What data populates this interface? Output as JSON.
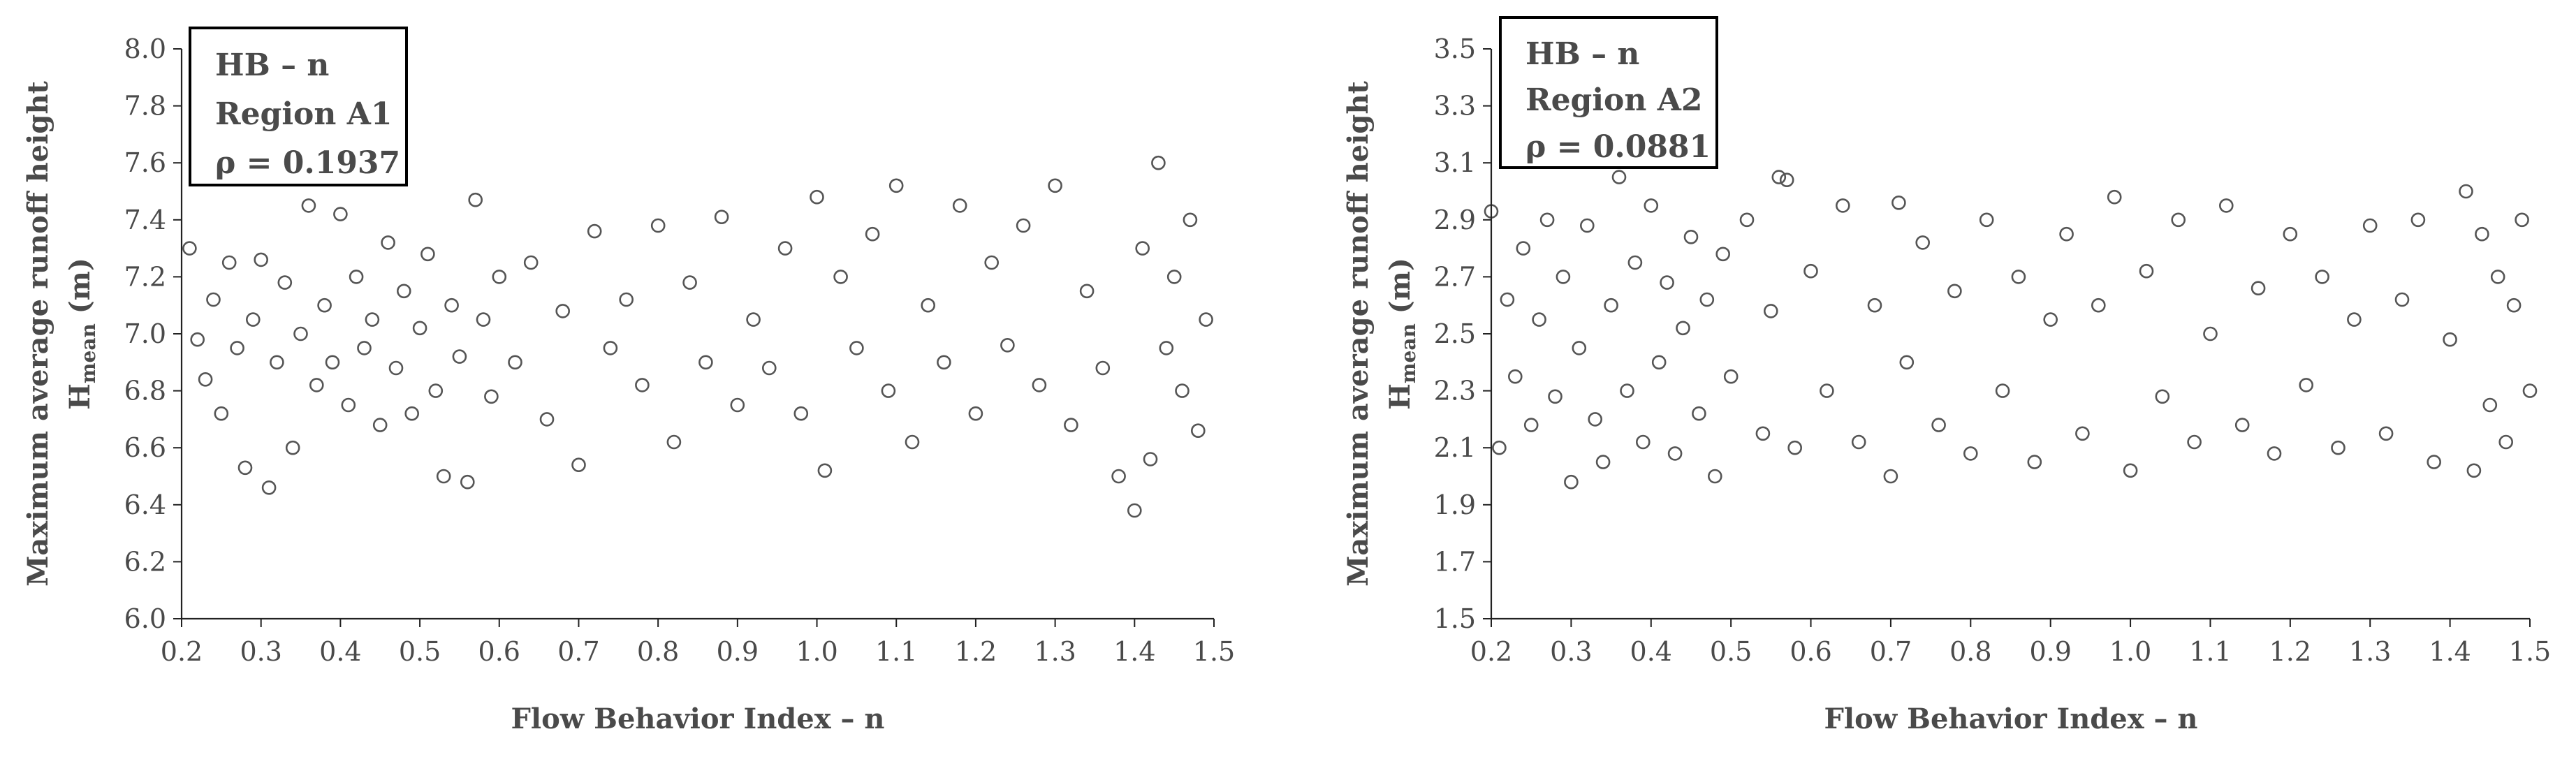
{
  "chart_data": [
    {
      "type": "scatter",
      "legend": [
        "HB – n",
        "Region A1",
        "ρ = 0.1937"
      ],
      "legend_position": "top-left",
      "xlabel": "Flow Behavior Index – n",
      "ylabel": "Maximum average runoff height",
      "ylabel2_main": "H",
      "ylabel2_sub": "mean",
      "ylabel2_unit": " (m)",
      "xlim": [
        0.2,
        1.5
      ],
      "ylim": [
        6.0,
        8.0
      ],
      "xticks": [
        0.2,
        0.3,
        0.4,
        0.5,
        0.6,
        0.7,
        0.8,
        0.9,
        1.0,
        1.1,
        1.2,
        1.3,
        1.4,
        1.5
      ],
      "yticks": [
        6.0,
        6.2,
        6.4,
        6.6,
        6.8,
        7.0,
        7.2,
        7.4,
        7.6,
        7.8,
        8.0
      ],
      "xtick_labels": [
        "0.2",
        "0.3",
        "0.4",
        "0.5",
        "0.6",
        "0.7",
        "0.8",
        "0.9",
        "1.0",
        "1.1",
        "1.2",
        "1.3",
        "1.4",
        "1.5"
      ],
      "ytick_labels": [
        "6.0",
        "6.2",
        "6.4",
        "6.6",
        "6.8",
        "7.0",
        "7.2",
        "7.4",
        "7.6",
        "7.8",
        "8.0"
      ],
      "grid": false,
      "points": [
        [
          0.21,
          7.3
        ],
        [
          0.22,
          6.98
        ],
        [
          0.23,
          6.84
        ],
        [
          0.24,
          7.12
        ],
        [
          0.25,
          6.72
        ],
        [
          0.26,
          7.25
        ],
        [
          0.27,
          6.95
        ],
        [
          0.28,
          6.53
        ],
        [
          0.29,
          7.05
        ],
        [
          0.3,
          7.26
        ],
        [
          0.31,
          6.46
        ],
        [
          0.32,
          6.9
        ],
        [
          0.33,
          7.18
        ],
        [
          0.34,
          6.6
        ],
        [
          0.35,
          7.0
        ],
        [
          0.36,
          7.45
        ],
        [
          0.37,
          6.82
        ],
        [
          0.38,
          7.1
        ],
        [
          0.39,
          6.9
        ],
        [
          0.4,
          7.42
        ],
        [
          0.41,
          6.75
        ],
        [
          0.42,
          7.2
        ],
        [
          0.43,
          6.95
        ],
        [
          0.44,
          7.05
        ],
        [
          0.45,
          6.68
        ],
        [
          0.46,
          7.32
        ],
        [
          0.47,
          6.88
        ],
        [
          0.48,
          7.15
        ],
        [
          0.49,
          6.72
        ],
        [
          0.5,
          7.02
        ],
        [
          0.51,
          7.28
        ],
        [
          0.52,
          6.8
        ],
        [
          0.53,
          6.5
        ],
        [
          0.54,
          7.1
        ],
        [
          0.55,
          6.92
        ],
        [
          0.56,
          6.48
        ],
        [
          0.57,
          7.47
        ],
        [
          0.58,
          7.05
        ],
        [
          0.59,
          6.78
        ],
        [
          0.6,
          7.2
        ],
        [
          0.62,
          6.9
        ],
        [
          0.64,
          7.25
        ],
        [
          0.66,
          6.7
        ],
        [
          0.68,
          7.08
        ],
        [
          0.7,
          6.54
        ],
        [
          0.72,
          7.36
        ],
        [
          0.74,
          6.95
        ],
        [
          0.76,
          7.12
        ],
        [
          0.78,
          6.82
        ],
        [
          0.8,
          7.38
        ],
        [
          0.82,
          6.62
        ],
        [
          0.84,
          7.18
        ],
        [
          0.86,
          6.9
        ],
        [
          0.88,
          7.41
        ],
        [
          0.9,
          6.75
        ],
        [
          0.92,
          7.05
        ],
        [
          0.94,
          6.88
        ],
        [
          0.96,
          7.3
        ],
        [
          0.98,
          6.72
        ],
        [
          1.0,
          7.48
        ],
        [
          1.01,
          6.52
        ],
        [
          1.03,
          7.2
        ],
        [
          1.05,
          6.95
        ],
        [
          1.07,
          7.35
        ],
        [
          1.09,
          6.8
        ],
        [
          1.1,
          7.52
        ],
        [
          1.12,
          6.62
        ],
        [
          1.14,
          7.1
        ],
        [
          1.16,
          6.9
        ],
        [
          1.18,
          7.45
        ],
        [
          1.2,
          6.72
        ],
        [
          1.22,
          7.25
        ],
        [
          1.24,
          6.96
        ],
        [
          1.26,
          7.38
        ],
        [
          1.28,
          6.82
        ],
        [
          1.3,
          7.52
        ],
        [
          1.32,
          6.68
        ],
        [
          1.34,
          7.15
        ],
        [
          1.36,
          6.88
        ],
        [
          1.38,
          6.5
        ],
        [
          1.4,
          6.38
        ],
        [
          1.41,
          7.3
        ],
        [
          1.42,
          6.56
        ],
        [
          1.43,
          7.6
        ],
        [
          1.44,
          6.95
        ],
        [
          1.45,
          7.2
        ],
        [
          1.46,
          6.8
        ],
        [
          1.47,
          7.4
        ],
        [
          1.48,
          6.66
        ],
        [
          1.49,
          7.05
        ]
      ]
    },
    {
      "type": "scatter",
      "legend": [
        "HB – n",
        "Region A2",
        "ρ = 0.0881"
      ],
      "legend_position": "top-left",
      "xlabel": "Flow Behavior Index – n",
      "ylabel": "Maximum average runoff height",
      "ylabel2_main": "H",
      "ylabel2_sub": "mean",
      "ylabel2_unit": " (m)",
      "xlim": [
        0.2,
        1.5
      ],
      "ylim": [
        1.5,
        3.5
      ],
      "xticks": [
        0.2,
        0.3,
        0.4,
        0.5,
        0.6,
        0.7,
        0.8,
        0.9,
        1.0,
        1.1,
        1.2,
        1.3,
        1.4,
        1.5
      ],
      "yticks": [
        1.5,
        1.7,
        1.9,
        2.1,
        2.3,
        2.5,
        2.7,
        2.9,
        3.1,
        3.3,
        3.5
      ],
      "xtick_labels": [
        "0.2",
        "0.3",
        "0.4",
        "0.5",
        "0.6",
        "0.7",
        "0.8",
        "0.9",
        "1.0",
        "1.1",
        "1.2",
        "1.3",
        "1.4",
        "1.5"
      ],
      "ytick_labels": [
        "1.5",
        "1.7",
        "1.9",
        "2.1",
        "2.3",
        "2.5",
        "2.7",
        "2.9",
        "3.1",
        "3.3",
        "3.5"
      ],
      "grid": false,
      "points": [
        [
          0.2,
          2.93
        ],
        [
          0.21,
          2.1
        ],
        [
          0.22,
          2.62
        ],
        [
          0.23,
          2.35
        ],
        [
          0.24,
          2.8
        ],
        [
          0.25,
          2.18
        ],
        [
          0.26,
          2.55
        ],
        [
          0.27,
          2.9
        ],
        [
          0.28,
          2.28
        ],
        [
          0.29,
          2.7
        ],
        [
          0.3,
          1.98
        ],
        [
          0.31,
          2.45
        ],
        [
          0.32,
          2.88
        ],
        [
          0.33,
          2.2
        ],
        [
          0.34,
          2.05
        ],
        [
          0.35,
          2.6
        ],
        [
          0.36,
          3.05
        ],
        [
          0.37,
          2.3
        ],
        [
          0.38,
          2.75
        ],
        [
          0.39,
          2.12
        ],
        [
          0.4,
          2.95
        ],
        [
          0.41,
          2.4
        ],
        [
          0.42,
          2.68
        ],
        [
          0.43,
          2.08
        ],
        [
          0.44,
          2.52
        ],
        [
          0.45,
          2.84
        ],
        [
          0.46,
          2.22
        ],
        [
          0.47,
          2.62
        ],
        [
          0.48,
          2.0
        ],
        [
          0.49,
          2.78
        ],
        [
          0.5,
          2.35
        ],
        [
          0.52,
          2.9
        ],
        [
          0.54,
          2.15
        ],
        [
          0.55,
          2.58
        ],
        [
          0.56,
          3.05
        ],
        [
          0.57,
          3.04
        ],
        [
          0.58,
          2.1
        ],
        [
          0.6,
          2.72
        ],
        [
          0.62,
          2.3
        ],
        [
          0.64,
          2.95
        ],
        [
          0.66,
          2.12
        ],
        [
          0.68,
          2.6
        ],
        [
          0.7,
          2.0
        ],
        [
          0.71,
          2.96
        ],
        [
          0.72,
          2.4
        ],
        [
          0.74,
          2.82
        ],
        [
          0.76,
          2.18
        ],
        [
          0.78,
          2.65
        ],
        [
          0.8,
          2.08
        ],
        [
          0.82,
          2.9
        ],
        [
          0.84,
          2.3
        ],
        [
          0.86,
          2.7
        ],
        [
          0.88,
          2.05
        ],
        [
          0.9,
          2.55
        ],
        [
          0.92,
          2.85
        ],
        [
          0.94,
          2.15
        ],
        [
          0.96,
          2.6
        ],
        [
          0.98,
          2.98
        ],
        [
          1.0,
          2.02
        ],
        [
          1.02,
          2.72
        ],
        [
          1.04,
          2.28
        ],
        [
          1.06,
          2.9
        ],
        [
          1.08,
          2.12
        ],
        [
          1.1,
          2.5
        ],
        [
          1.12,
          2.95
        ],
        [
          1.14,
          2.18
        ],
        [
          1.16,
          2.66
        ],
        [
          1.18,
          2.08
        ],
        [
          1.2,
          2.85
        ],
        [
          1.22,
          2.32
        ],
        [
          1.24,
          2.7
        ],
        [
          1.26,
          2.1
        ],
        [
          1.28,
          2.55
        ],
        [
          1.3,
          2.88
        ],
        [
          1.32,
          2.15
        ],
        [
          1.34,
          2.62
        ],
        [
          1.36,
          2.9
        ],
        [
          1.38,
          2.05
        ],
        [
          1.4,
          2.48
        ],
        [
          1.42,
          3.0
        ],
        [
          1.43,
          2.02
        ],
        [
          1.44,
          2.85
        ],
        [
          1.45,
          2.25
        ],
        [
          1.46,
          2.7
        ],
        [
          1.47,
          2.12
        ],
        [
          1.48,
          2.6
        ],
        [
          1.49,
          2.9
        ],
        [
          1.5,
          2.3
        ]
      ]
    }
  ]
}
